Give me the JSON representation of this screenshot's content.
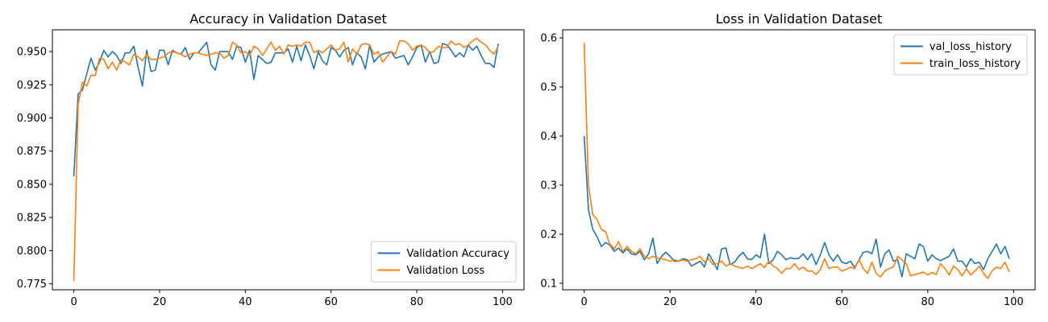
{
  "chart_data": [
    {
      "type": "line",
      "title": "Accuracy in Validation Dataset",
      "xlabel": "",
      "ylabel": "",
      "xlim": [
        -5,
        105
      ],
      "ylim": [
        0.7705,
        0.9664
      ],
      "xticks": [
        0,
        20,
        40,
        60,
        80,
        100
      ],
      "xtick_labels": [
        "0",
        "20",
        "40",
        "60",
        "80",
        "100"
      ],
      "yticks": [
        0.775,
        0.8,
        0.825,
        0.85,
        0.875,
        0.9,
        0.925,
        0.95
      ],
      "ytick_labels": [
        "0.775",
        "0.800",
        "0.825",
        "0.850",
        "0.875",
        "0.900",
        "0.925",
        "0.950"
      ],
      "grid": false,
      "legend_position": "lower-right",
      "series": [
        {
          "name": "Validation Accuracy",
          "color": "#1f77b4",
          "values": [
            0.856,
            0.918,
            0.921,
            0.933,
            0.945,
            0.936,
            0.942,
            0.951,
            0.946,
            0.95,
            0.947,
            0.941,
            0.949,
            0.949,
            0.954,
            0.938,
            0.924,
            0.951,
            0.935,
            0.936,
            0.951,
            0.951,
            0.94,
            0.951,
            0.949,
            0.948,
            0.953,
            0.944,
            0.949,
            0.949,
            0.953,
            0.957,
            0.94,
            0.936,
            0.95,
            0.95,
            0.95,
            0.944,
            0.954,
            0.953,
            0.942,
            0.951,
            0.929,
            0.947,
            0.944,
            0.941,
            0.942,
            0.949,
            0.949,
            0.949,
            0.952,
            0.942,
            0.954,
            0.943,
            0.955,
            0.947,
            0.937,
            0.95,
            0.943,
            0.94,
            0.953,
            0.951,
            0.946,
            0.951,
            0.953,
            0.94,
            0.949,
            0.946,
            0.937,
            0.955,
            0.942,
            0.946,
            0.948,
            0.949,
            0.95,
            0.945,
            0.946,
            0.947,
            0.94,
            0.946,
            0.953,
            0.955,
            0.942,
            0.95,
            0.941,
            0.942,
            0.956,
            0.955,
            0.951,
            0.946,
            0.949,
            0.946,
            0.955,
            0.951,
            0.954,
            0.947,
            0.941,
            0.941,
            0.938,
            0.956
          ]
        },
        {
          "name": "Validation Loss",
          "color": "#ff7f0e",
          "values": [
            0.777,
            0.91,
            0.927,
            0.924,
            0.932,
            0.932,
            0.945,
            0.944,
            0.937,
            0.942,
            0.936,
            0.944,
            0.942,
            0.94,
            0.948,
            0.946,
            0.943,
            0.948,
            0.944,
            0.944,
            0.945,
            0.946,
            0.949,
            0.95,
            0.949,
            0.948,
            0.946,
            0.948,
            0.949,
            0.949,
            0.948,
            0.947,
            0.948,
            0.949,
            0.949,
            0.945,
            0.947,
            0.957,
            0.955,
            0.949,
            0.95,
            0.947,
            0.954,
            0.952,
            0.947,
            0.952,
            0.957,
            0.951,
            0.954,
            0.948,
            0.955,
            0.954,
            0.955,
            0.954,
            0.957,
            0.957,
            0.949,
            0.951,
            0.949,
            0.952,
            0.955,
            0.951,
            0.952,
            0.957,
            0.942,
            0.952,
            0.948,
            0.955,
            0.956,
            0.955,
            0.948,
            0.95,
            0.942,
            0.946,
            0.95,
            0.948,
            0.958,
            0.958,
            0.956,
            0.951,
            0.954,
            0.955,
            0.953,
            0.949,
            0.95,
            0.954,
            0.953,
            0.953,
            0.958,
            0.955,
            0.956,
            0.953,
            0.955,
            0.958,
            0.96,
            0.957,
            0.955,
            0.951,
            0.948,
            0.954
          ]
        }
      ]
    },
    {
      "type": "line",
      "title": "Loss in Validation Dataset",
      "xlabel": "",
      "ylabel": "",
      "xlim": [
        -5,
        105
      ],
      "ylim": [
        0.0867,
        0.6165
      ],
      "xticks": [
        0,
        20,
        40,
        60,
        80,
        100
      ],
      "xtick_labels": [
        "0",
        "20",
        "40",
        "60",
        "80",
        "100"
      ],
      "yticks": [
        0.1,
        0.2,
        0.3,
        0.4,
        0.5,
        0.6
      ],
      "ytick_labels": [
        "0.1",
        "0.2",
        "0.3",
        "0.4",
        "0.5",
        "0.6"
      ],
      "grid": false,
      "legend_position": "upper-right",
      "series": [
        {
          "name": "val_loss_history",
          "color": "#1f77b4",
          "values": [
            0.4,
            0.25,
            0.21,
            0.195,
            0.175,
            0.183,
            0.178,
            0.165,
            0.172,
            0.162,
            0.17,
            0.16,
            0.158,
            0.165,
            0.148,
            0.16,
            0.192,
            0.14,
            0.155,
            0.163,
            0.155,
            0.145,
            0.145,
            0.15,
            0.148,
            0.135,
            0.14,
            0.145,
            0.133,
            0.16,
            0.145,
            0.128,
            0.17,
            0.172,
            0.138,
            0.143,
            0.155,
            0.163,
            0.15,
            0.148,
            0.158,
            0.152,
            0.2,
            0.14,
            0.148,
            0.165,
            0.158,
            0.148,
            0.152,
            0.15,
            0.151,
            0.16,
            0.148,
            0.16,
            0.138,
            0.158,
            0.183,
            0.158,
            0.145,
            0.158,
            0.143,
            0.14,
            0.145,
            0.132,
            0.148,
            0.163,
            0.165,
            0.16,
            0.19,
            0.133,
            0.16,
            0.168,
            0.145,
            0.148,
            0.113,
            0.16,
            0.155,
            0.15,
            0.18,
            0.175,
            0.145,
            0.158,
            0.15,
            0.146,
            0.151,
            0.155,
            0.17,
            0.145,
            0.145,
            0.133,
            0.15,
            0.14,
            0.143,
            0.128,
            0.15,
            0.165,
            0.18,
            0.16,
            0.175,
            0.15
          ]
        },
        {
          "name": "train_loss_history",
          "color": "#ff7f0e",
          "values": [
            0.59,
            0.3,
            0.24,
            0.23,
            0.21,
            0.205,
            0.18,
            0.17,
            0.185,
            0.165,
            0.175,
            0.165,
            0.16,
            0.17,
            0.155,
            0.15,
            0.155,
            0.152,
            0.15,
            0.148,
            0.145,
            0.148,
            0.145,
            0.148,
            0.145,
            0.148,
            0.15,
            0.155,
            0.143,
            0.15,
            0.138,
            0.14,
            0.145,
            0.135,
            0.14,
            0.135,
            0.133,
            0.13,
            0.135,
            0.13,
            0.135,
            0.14,
            0.132,
            0.145,
            0.135,
            0.13,
            0.12,
            0.13,
            0.13,
            0.14,
            0.128,
            0.133,
            0.125,
            0.125,
            0.118,
            0.128,
            0.15,
            0.13,
            0.133,
            0.133,
            0.125,
            0.128,
            0.133,
            0.13,
            0.148,
            0.13,
            0.12,
            0.143,
            0.12,
            0.113,
            0.125,
            0.13,
            0.133,
            0.155,
            0.148,
            0.14,
            0.115,
            0.118,
            0.12,
            0.123,
            0.117,
            0.122,
            0.118,
            0.14,
            0.13,
            0.117,
            0.135,
            0.128,
            0.115,
            0.13,
            0.117,
            0.125,
            0.135,
            0.12,
            0.11,
            0.125,
            0.133,
            0.13,
            0.143,
            0.123
          ]
        }
      ]
    }
  ]
}
